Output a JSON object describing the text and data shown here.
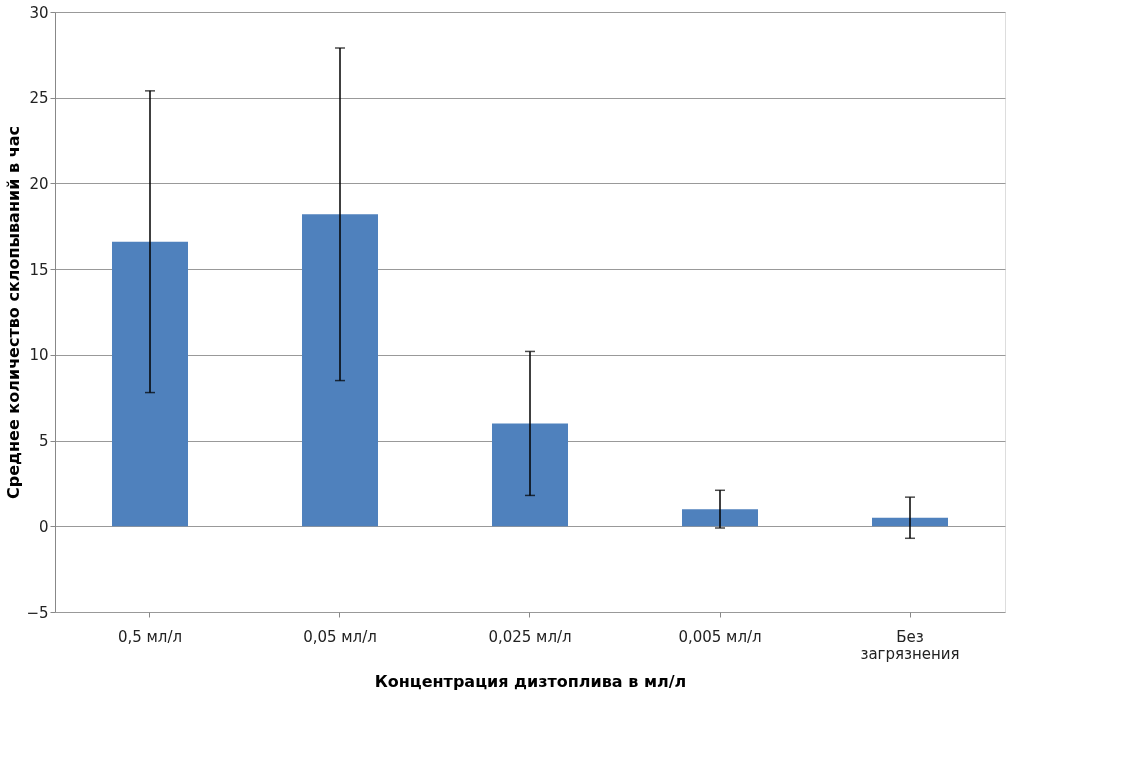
{
  "chart_data": {
    "type": "bar",
    "xlabel": "Концентрация дизтоплива в мл/л",
    "ylabel": "Среднее количество склопываний в час",
    "categories": [
      "0,5 мл/л",
      "0,05 мл/л",
      "0,025 мл/л",
      "0,005 мл/л",
      "Без загрязнения"
    ],
    "values": [
      16.6,
      18.2,
      6.0,
      1.0,
      0.5
    ],
    "errors": [
      8.8,
      9.7,
      4.2,
      1.1,
      1.2
    ],
    "color": "#4f81bd",
    "ylim": [
      -5,
      30
    ],
    "yticks": [
      -5,
      0,
      5,
      10,
      15,
      20,
      25,
      30
    ],
    "grid": "y"
  }
}
